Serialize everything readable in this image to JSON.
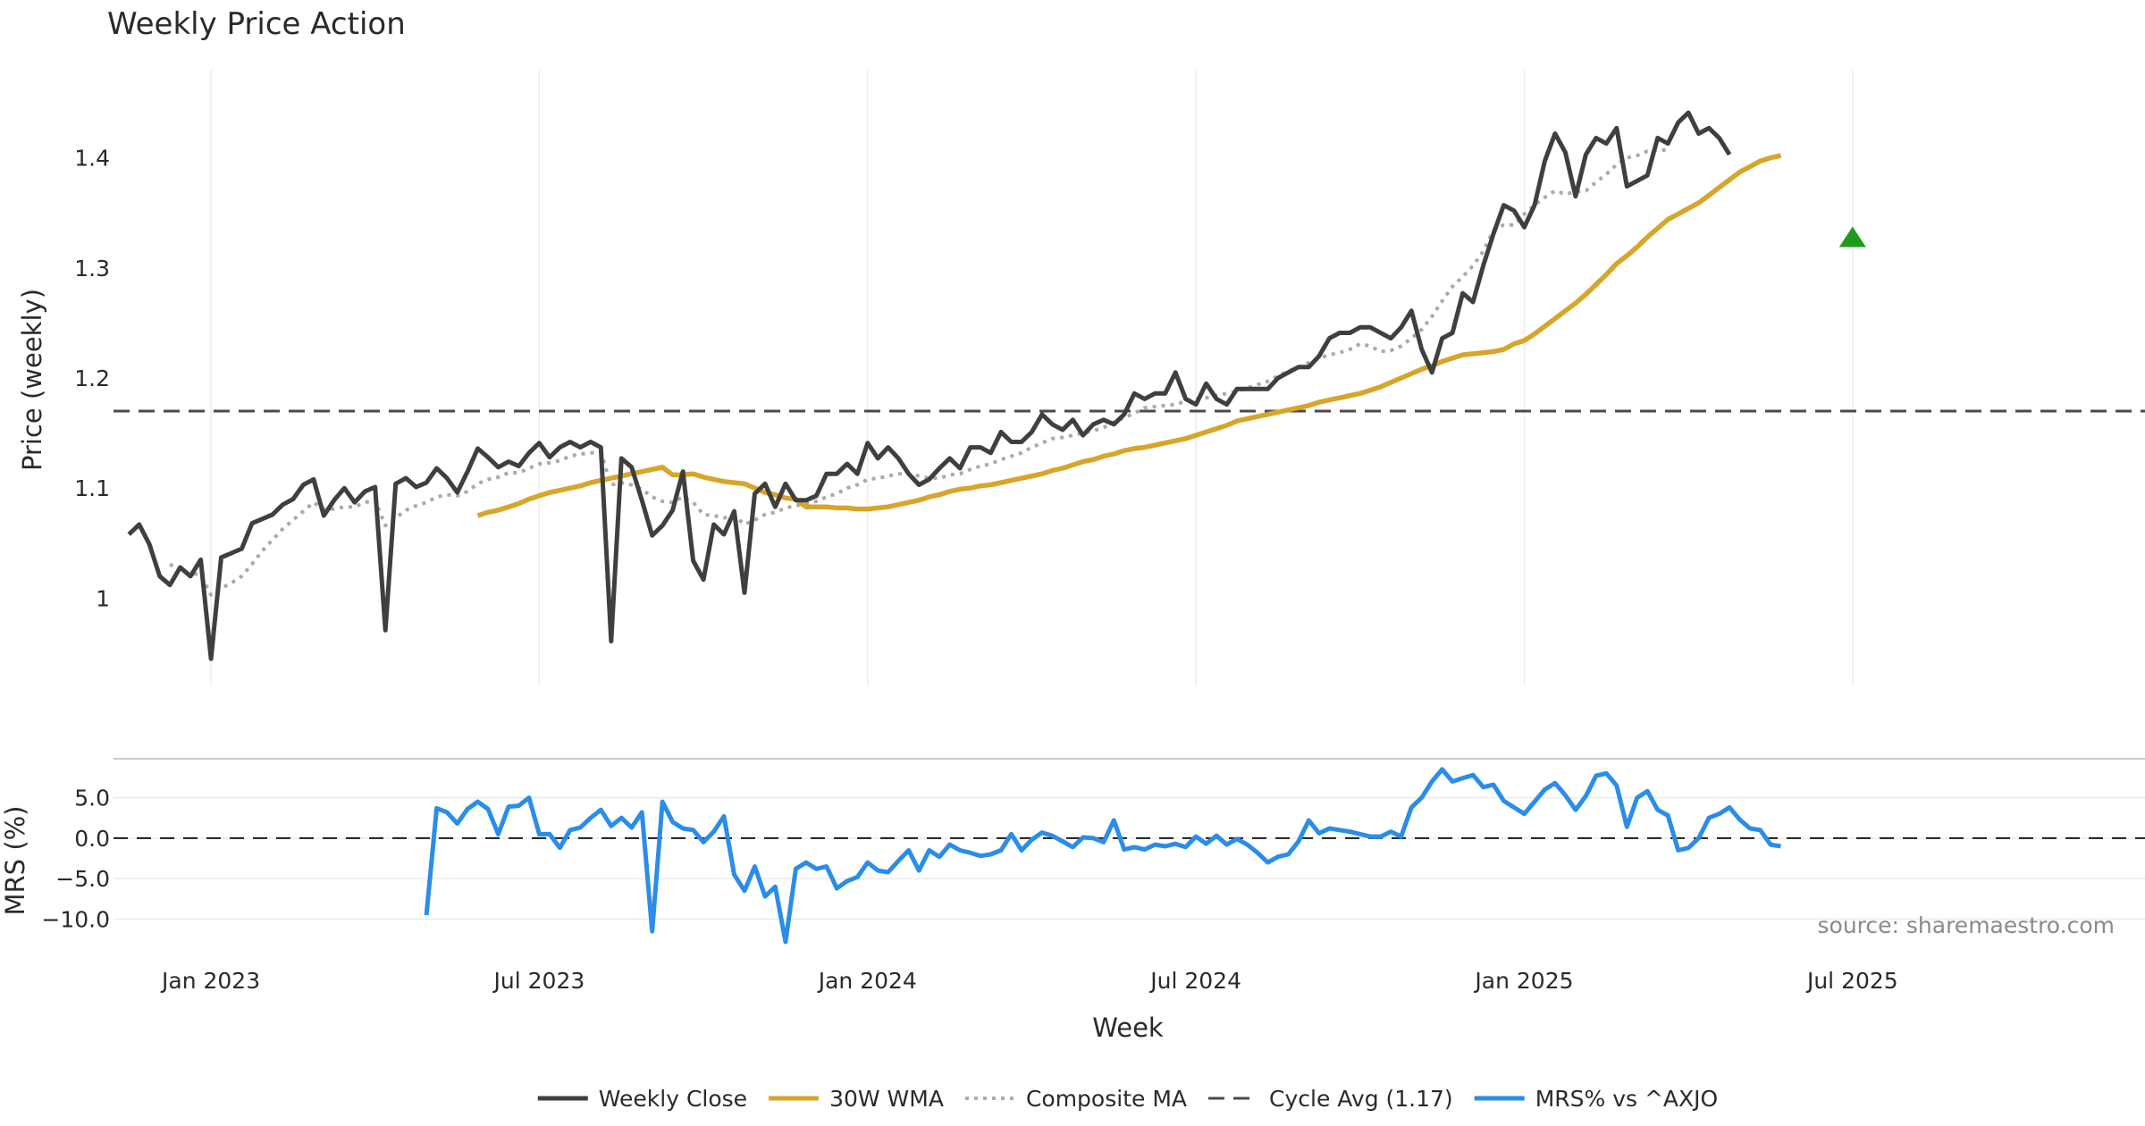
{
  "chart_data": {
    "type": "line",
    "title": "Weekly Price Action",
    "xlabel": "Week",
    "x_ticks": [
      "Jan 2023",
      "Jul 2023",
      "Jan 2024",
      "Jul 2024",
      "Jan 2025",
      "Jul 2025"
    ],
    "x_tick_weeks": [
      8,
      40,
      72,
      104,
      136,
      168
    ],
    "x_range_weeks": [
      -1.5,
      196.5
    ],
    "source": "source: sharemaestro.com",
    "price_panel": {
      "ylabel": "Price (weekly)",
      "ylim": [
        0.92,
        1.48
      ],
      "y_ticks": [
        1.0,
        1.1,
        1.2,
        1.3,
        1.4
      ],
      "y_tick_labels": [
        "1",
        "1.1",
        "1.2",
        "1.3",
        "1.4"
      ],
      "cycle_avg": 1.17,
      "buy_signal": {
        "week": 168,
        "value": 1.327
      },
      "series": [
        {
          "name": "Weekly Close",
          "color": "#3f3f3f",
          "start_week": 0,
          "values": [
            1.058,
            1.067,
            1.049,
            1.02,
            1.012,
            1.028,
            1.02,
            1.035,
            0.945,
            1.037,
            1.041,
            1.045,
            1.068,
            1.072,
            1.076,
            1.085,
            1.09,
            1.103,
            1.108,
            1.075,
            1.089,
            1.1,
            1.087,
            1.097,
            1.101,
            0.971,
            1.104,
            1.109,
            1.101,
            1.105,
            1.118,
            1.109,
            1.096,
            1.115,
            1.136,
            1.128,
            1.119,
            1.124,
            1.12,
            1.132,
            1.141,
            1.128,
            1.137,
            1.142,
            1.137,
            1.142,
            1.137,
            0.961,
            1.127,
            1.119,
            1.089,
            1.057,
            1.066,
            1.08,
            1.115,
            1.034,
            1.017,
            1.067,
            1.058,
            1.079,
            1.005,
            1.095,
            1.104,
            1.083,
            1.104,
            1.089,
            1.089,
            1.093,
            1.113,
            1.113,
            1.122,
            1.113,
            1.141,
            1.127,
            1.137,
            1.127,
            1.113,
            1.103,
            1.108,
            1.118,
            1.127,
            1.118,
            1.137,
            1.137,
            1.132,
            1.151,
            1.142,
            1.142,
            1.151,
            1.167,
            1.158,
            1.153,
            1.162,
            1.148,
            1.158,
            1.162,
            1.158,
            1.167,
            1.186,
            1.181,
            1.186,
            1.186,
            1.205,
            1.181,
            1.176,
            1.195,
            1.181,
            1.176,
            1.19,
            1.19,
            1.19,
            1.19,
            1.2,
            1.205,
            1.21,
            1.21,
            1.22,
            1.236,
            1.241,
            1.241,
            1.246,
            1.246,
            1.241,
            1.236,
            1.246,
            1.261,
            1.226,
            1.205,
            1.236,
            1.241,
            1.277,
            1.269,
            1.302,
            1.331,
            1.357,
            1.352,
            1.337,
            1.357,
            1.397,
            1.422,
            1.405,
            1.365,
            1.403,
            1.418,
            1.413,
            1.427,
            1.374,
            1.379,
            1.384,
            1.418,
            1.413,
            1.432,
            1.441,
            1.422,
            1.427,
            1.418,
            1.403
          ]
        },
        {
          "name": "30W WMA",
          "color": "#d7a52a",
          "start_week": 34,
          "values": [
            1.075,
            1.078,
            1.08,
            1.083,
            1.086,
            1.09,
            1.093,
            1.096,
            1.098,
            1.1,
            1.102,
            1.105,
            1.107,
            1.109,
            1.111,
            1.113,
            1.115,
            1.117,
            1.119,
            1.112,
            1.112,
            1.113,
            1.11,
            1.108,
            1.106,
            1.105,
            1.104,
            1.1,
            1.096,
            1.094,
            1.091,
            1.09,
            1.083,
            1.083,
            1.083,
            1.082,
            1.082,
            1.081,
            1.081,
            1.082,
            1.083,
            1.085,
            1.087,
            1.089,
            1.092,
            1.094,
            1.097,
            1.099,
            1.1,
            1.102,
            1.103,
            1.105,
            1.107,
            1.109,
            1.111,
            1.113,
            1.116,
            1.118,
            1.121,
            1.124,
            1.126,
            1.129,
            1.131,
            1.134,
            1.136,
            1.137,
            1.139,
            1.141,
            1.143,
            1.145,
            1.148,
            1.151,
            1.154,
            1.157,
            1.161,
            1.163,
            1.165,
            1.167,
            1.169,
            1.171,
            1.173,
            1.175,
            1.178,
            1.18,
            1.182,
            1.184,
            1.186,
            1.189,
            1.192,
            1.196,
            1.2,
            1.204,
            1.208,
            1.211,
            1.215,
            1.218,
            1.221,
            1.222,
            1.223,
            1.224,
            1.226,
            1.231,
            1.234,
            1.24,
            1.247,
            1.254,
            1.261,
            1.268,
            1.276,
            1.285,
            1.294,
            1.304,
            1.311,
            1.319,
            1.328,
            1.336,
            1.344,
            1.349,
            1.354,
            1.359,
            1.366,
            1.373,
            1.38,
            1.387,
            1.392,
            1.397,
            1.4,
            1.402
          ]
        },
        {
          "name": "Composite MA",
          "color": "#aaaaaa",
          "start_week": 4,
          "values": [
            1.031,
            1.024,
            1.023,
            1.021,
            1.003,
            1.009,
            1.014,
            1.02,
            1.031,
            1.043,
            1.053,
            1.063,
            1.071,
            1.079,
            1.087,
            1.081,
            1.081,
            1.083,
            1.083,
            1.087,
            1.089,
            1.066,
            1.073,
            1.08,
            1.084,
            1.087,
            1.092,
            1.094,
            1.093,
            1.097,
            1.104,
            1.108,
            1.11,
            1.114,
            1.114,
            1.118,
            1.122,
            1.123,
            1.125,
            1.129,
            1.131,
            1.132,
            1.132,
            1.103,
            1.105,
            1.103,
            1.099,
            1.092,
            1.088,
            1.087,
            1.092,
            1.087,
            1.076,
            1.075,
            1.073,
            1.075,
            1.067,
            1.071,
            1.076,
            1.078,
            1.082,
            1.084,
            1.086,
            1.088,
            1.092,
            1.095,
            1.1,
            1.103,
            1.108,
            1.109,
            1.111,
            1.113,
            1.113,
            1.111,
            1.109,
            1.109,
            1.112,
            1.113,
            1.117,
            1.12,
            1.122,
            1.126,
            1.129,
            1.132,
            1.137,
            1.141,
            1.145,
            1.146,
            1.148,
            1.15,
            1.152,
            1.155,
            1.16,
            1.164,
            1.168,
            1.173,
            1.174,
            1.175,
            1.176,
            1.179,
            1.181,
            1.182,
            1.184,
            1.186,
            1.188,
            1.191,
            1.194,
            1.197,
            1.202,
            1.206,
            1.21,
            1.214,
            1.218,
            1.221,
            1.223,
            1.226,
            1.231,
            1.229,
            1.224,
            1.225,
            1.229,
            1.236,
            1.244,
            1.256,
            1.27,
            1.283,
            1.292,
            1.302,
            1.315,
            1.334,
            1.339,
            1.339,
            1.349,
            1.357,
            1.364,
            1.37,
            1.367,
            1.369,
            1.37,
            1.378,
            1.385,
            1.394,
            1.4,
            1.402,
            1.406,
            1.407,
            1.407
          ]
        }
      ]
    },
    "mrs_panel": {
      "ylabel": "MRS (%)",
      "ylim": [
        -14.8,
        9.7
      ],
      "y_ticks": [
        5.0,
        0.0,
        -5.0,
        -10.0
      ],
      "y_tick_labels": [
        "5.0",
        "0.0",
        "−5.0",
        "−10.0"
      ],
      "zero_line": 0.0,
      "series": [
        {
          "name": "MRS% vs ^AXJO",
          "color": "#2a8de8",
          "start_week": 29,
          "values": [
            -9.5,
            3.7,
            3.2,
            1.8,
            3.6,
            4.5,
            3.6,
            0.5,
            3.9,
            4.0,
            5.0,
            0.5,
            0.5,
            -1.2,
            1.0,
            1.3,
            2.5,
            3.5,
            1.5,
            2.5,
            1.3,
            3.2,
            -11.5,
            4.5,
            2.0,
            1.2,
            1.0,
            -0.5,
            0.8,
            2.7,
            -4.5,
            -6.5,
            -3.5,
            -7.2,
            -6.0,
            -12.8,
            -3.8,
            -3.0,
            -3.8,
            -3.5,
            -6.2,
            -5.3,
            -4.8,
            -3.0,
            -4.0,
            -4.2,
            -2.8,
            -1.5,
            -4.0,
            -1.5,
            -2.3,
            -0.8,
            -1.5,
            -1.8,
            -2.2,
            -2.0,
            -1.5,
            0.5,
            -1.5,
            -0.2,
            0.7,
            0.3,
            -0.4,
            -1.1,
            0.1,
            0.0,
            -0.5,
            2.2,
            -1.4,
            -1.1,
            -1.4,
            -0.8,
            -1.0,
            -0.7,
            -1.1,
            0.2,
            -0.7,
            0.3,
            -0.8,
            -0.1,
            -0.8,
            -1.8,
            -3.0,
            -2.3,
            -2.0,
            -0.4,
            2.2,
            0.6,
            1.2,
            1.0,
            0.8,
            0.5,
            0.2,
            0.2,
            0.8,
            0.2,
            3.8,
            5.0,
            7.0,
            8.5,
            7.0,
            7.4,
            7.8,
            6.3,
            6.6,
            4.6,
            3.8,
            3.0,
            4.5,
            6.0,
            6.8,
            5.3,
            3.5,
            5.2,
            7.7,
            8.0,
            6.5,
            1.4,
            5.0,
            5.8,
            3.5,
            2.8,
            -1.5,
            -1.2,
            0.0,
            2.5,
            3.0,
            3.8,
            2.3,
            1.2,
            1.0,
            -0.8,
            -1.0
          ]
        }
      ]
    },
    "legend": [
      {
        "label": "Weekly Close",
        "color": "#3f3f3f",
        "style": "solid"
      },
      {
        "label": "30W WMA",
        "color": "#d7a52a",
        "style": "solid"
      },
      {
        "label": "Composite MA",
        "color": "#aaaaaa",
        "style": "dotted"
      },
      {
        "label": "Cycle Avg (1.17)",
        "color": "#4a4a4a",
        "style": "dashed"
      },
      {
        "label": "MRS% vs ^AXJO",
        "color": "#2a8de8",
        "style": "solid"
      }
    ]
  }
}
